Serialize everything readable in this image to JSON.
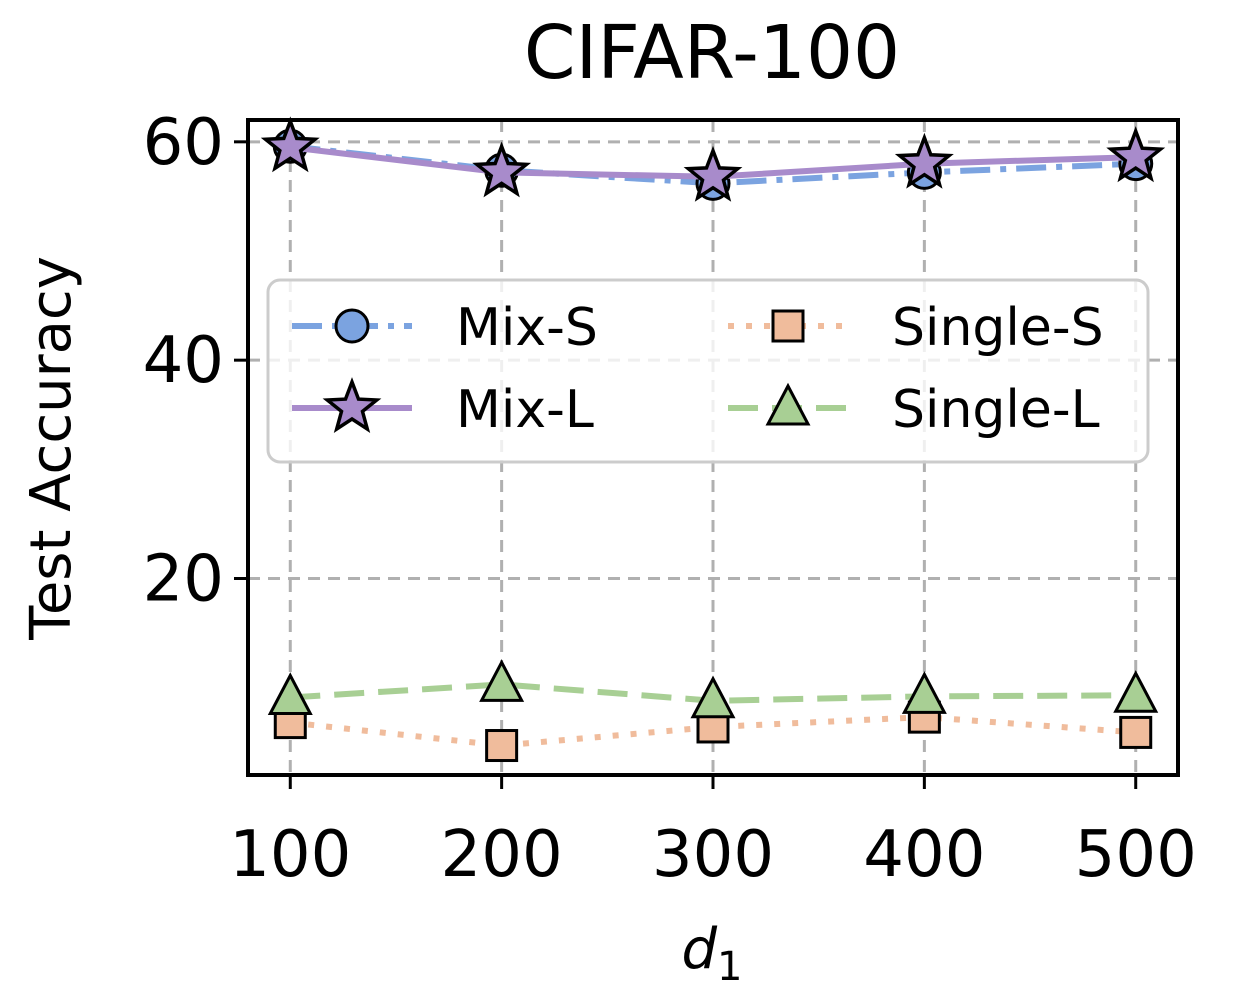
{
  "chart_data": {
    "type": "line",
    "title": "CIFAR-100",
    "xlabel": "d",
    "xlabel_subscript": "1",
    "ylabel": "Test Accuracy",
    "x": [
      100,
      200,
      300,
      400,
      500
    ],
    "x_tick_labels": [
      "100",
      "200",
      "300",
      "400",
      "500"
    ],
    "y_ticks": [
      20,
      40,
      60
    ],
    "y_tick_labels": [
      "20",
      "40",
      "60"
    ],
    "xlim": [
      80,
      520
    ],
    "ylim": [
      2,
      62
    ],
    "grid": true,
    "legend_position": "center",
    "series": [
      {
        "name": "Mix-S",
        "values": [
          59.6,
          57.4,
          56.2,
          57.2,
          58.0
        ],
        "color": "#7ba3e0",
        "linestyle": "dashdot",
        "marker": "circle",
        "marker_color": "#7ba3e0"
      },
      {
        "name": "Mix-L",
        "values": [
          59.5,
          57.2,
          56.8,
          58.0,
          58.6
        ],
        "color": "#a88bcb",
        "linestyle": "solid",
        "marker": "star",
        "marker_color": "#a88bcb"
      },
      {
        "name": "Single-S",
        "values": [
          6.8,
          4.7,
          6.4,
          7.3,
          5.9
        ],
        "color": "#f0bc9c",
        "linestyle": "dotted",
        "marker": "square",
        "marker_color": "#f0bc9c"
      },
      {
        "name": "Single-L",
        "values": [
          9.1,
          10.3,
          8.8,
          9.2,
          9.3
        ],
        "color": "#a8cf94",
        "linestyle": "dashed",
        "marker": "triangle",
        "marker_color": "#a8cf94"
      }
    ]
  }
}
